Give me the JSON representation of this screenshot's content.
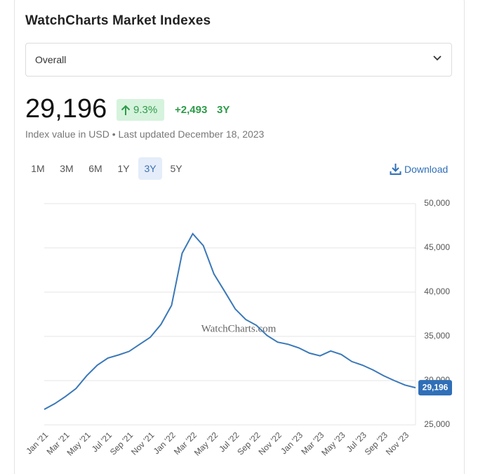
{
  "header": {
    "title": "WatchCharts Market Indexes",
    "dropdown": "Overall",
    "index_value": "29,196",
    "change_pct": "9.3%",
    "change_abs": "+2,493",
    "change_period": "3Y",
    "subtitle": "Index value in USD • Last updated December 18, 2023"
  },
  "ranges": [
    "1M",
    "3M",
    "6M",
    "1Y",
    "3Y",
    "5Y"
  ],
  "selected_range": 4,
  "download": "Download",
  "chart_data": {
    "type": "line",
    "watermark": "WatchCharts.com",
    "categories": [
      "Jan '21",
      null,
      "Mar '21",
      null,
      "May '21",
      null,
      "Jul '21",
      null,
      "Sep '21",
      null,
      "Nov '21",
      null,
      "Jan '22",
      null,
      "Mar '22",
      null,
      "May '22",
      null,
      "Jul '22",
      null,
      "Sep '22",
      null,
      "Nov '22",
      null,
      "Jan '23",
      null,
      "Mar '23",
      null,
      "May '23",
      null,
      "Jul '23",
      null,
      "Sep '23",
      null,
      "Nov '23",
      null
    ],
    "values": [
      26750,
      27400,
      28200,
      29100,
      30550,
      31750,
      32550,
      32900,
      33300,
      34100,
      34900,
      36350,
      38500,
      44400,
      46600,
      45250,
      42050,
      40100,
      38100,
      36900,
      36250,
      35100,
      34350,
      34100,
      33700,
      33100,
      32800,
      33350,
      32950,
      32150,
      31750,
      31200,
      30550,
      30000,
      29500,
      29196
    ],
    "value_labels": [
      null,
      null,
      null,
      null,
      null,
      null,
      null,
      null,
      null,
      null,
      null,
      null,
      null,
      null,
      null,
      null,
      null,
      null,
      null,
      null,
      null,
      null,
      null,
      null,
      null,
      null,
      null,
      null,
      null,
      null,
      null,
      null,
      null,
      null,
      null,
      "29,196"
    ],
    "color": "#3a78b8",
    "label_color": "#2f6fb8",
    "ylim": [
      25000,
      50000
    ],
    "yticks": [
      {
        "value": 25000,
        "label": "25,000"
      },
      {
        "value": 30000,
        "label": "30,000"
      },
      {
        "value": 35000,
        "label": "35,000"
      },
      {
        "value": 40000,
        "label": "40,000"
      },
      {
        "value": 45000,
        "label": "45,000"
      },
      {
        "value": 50000,
        "label": "50,000"
      }
    ],
    "grid": true
  }
}
